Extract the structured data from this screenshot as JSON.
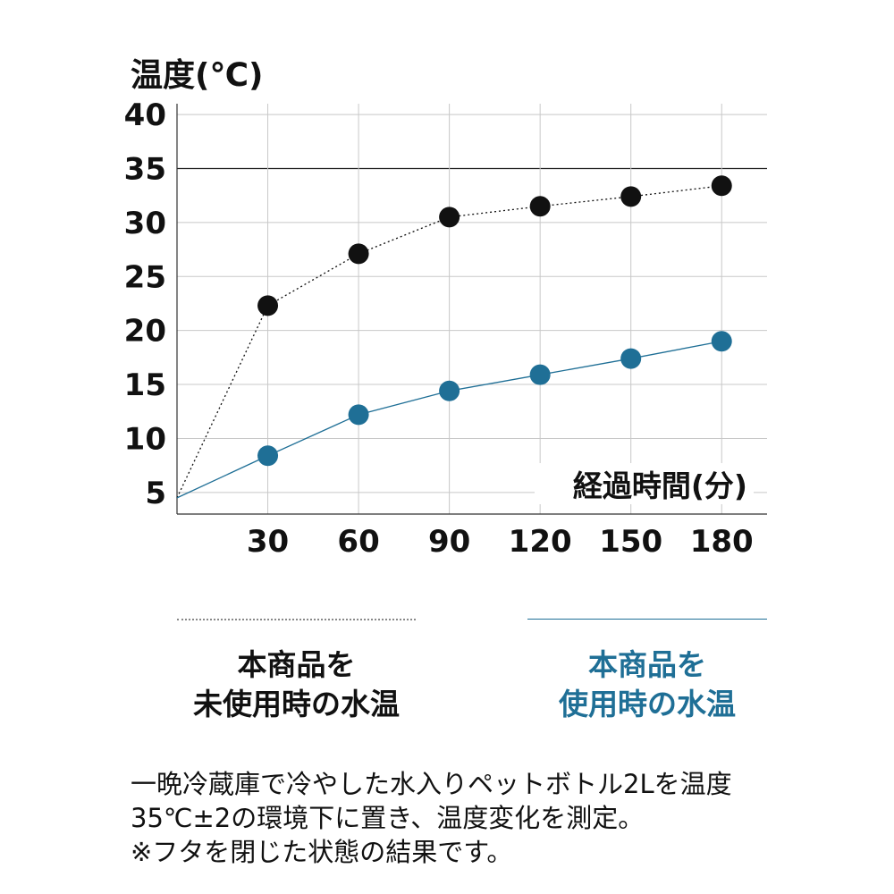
{
  "chart_data": {
    "type": "line",
    "ylabel": "温度(℃)",
    "xlabel": "経過時間(分)",
    "yticks": [
      5,
      10,
      15,
      20,
      25,
      30,
      35,
      40
    ],
    "xticks": [
      30,
      60,
      90,
      120,
      150,
      180
    ],
    "xlim": [
      0,
      195
    ],
    "ylim": [
      3,
      41
    ],
    "reference_line": 35,
    "grid": true,
    "series": [
      {
        "name": "本商品を未使用時の水温",
        "color": "#111111",
        "line_style": "dotted",
        "x": [
          0,
          30,
          60,
          90,
          120,
          150,
          180
        ],
        "y": [
          4.5,
          22.3,
          27.1,
          30.5,
          31.5,
          32.4,
          33.4
        ]
      },
      {
        "name": "本商品を使用時の水温",
        "color": "#1f6f96",
        "line_style": "solid",
        "x": [
          0,
          30,
          60,
          90,
          120,
          150,
          180
        ],
        "y": [
          4.5,
          8.4,
          12.2,
          14.4,
          15.9,
          17.4,
          19.0
        ]
      }
    ]
  },
  "legend": {
    "item1": {
      "line1": "本商品を",
      "line2": "未使用時の水温"
    },
    "item2": {
      "line1": "本商品を",
      "line2": "使用時の水温"
    }
  },
  "note": {
    "line1": "一晩冷蔵庫で冷やした水入りペットボトル2Lを温度",
    "line2": "35℃±2の環境下に置き、温度変化を測定。",
    "line3": "※フタを閉じた状態の結果です。"
  }
}
